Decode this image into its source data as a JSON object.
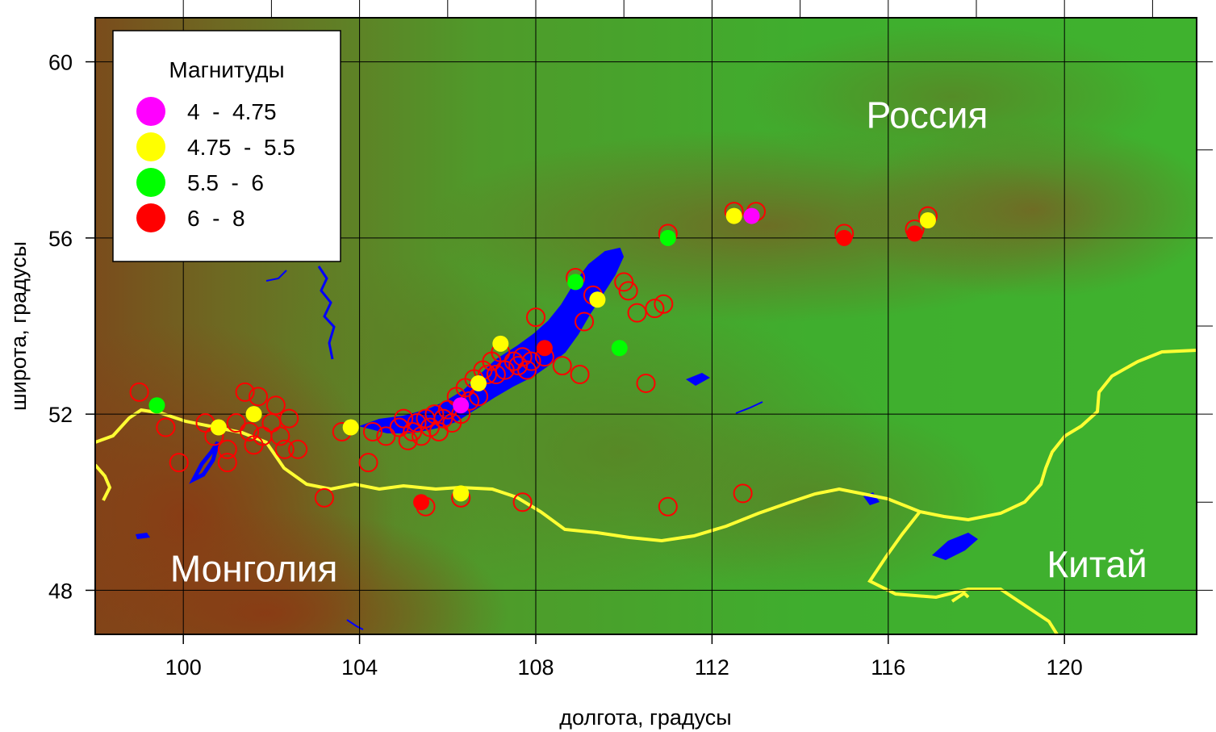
{
  "chart_data": {
    "type": "map-scatter",
    "xlabel": "долгота, градусы",
    "ylabel": "широта, градусы",
    "xlim": [
      98,
      123
    ],
    "ylim": [
      47,
      61
    ],
    "xticks": [
      100,
      104,
      108,
      112,
      116,
      120
    ],
    "yticks": [
      48,
      52,
      56,
      60
    ],
    "grid": true,
    "colors": {
      "terrain_low": "#3cb02c",
      "terrain_mid": "#5e8f26",
      "terrain_high": "#8c4a1a",
      "water": "#0000ff",
      "border": "#ffff33",
      "circle": "#ff0000",
      "grid": "#000000"
    },
    "country_labels": [
      {
        "text": "Россия",
        "lon": 115.5,
        "lat": 58.5
      },
      {
        "text": "Монголия",
        "lon": 99.7,
        "lat": 48.2
      },
      {
        "text": "Китай",
        "lon": 119.6,
        "lat": 48.3
      }
    ],
    "legend": {
      "title": "Магнитуды",
      "placement": "top-left",
      "items": [
        {
          "label": "4  -  4.75",
          "color": "#ff00ff"
        },
        {
          "label": "4.75  -  5.5",
          "color": "#ffff00"
        },
        {
          "label": "5.5  -  6",
          "color": "#00ff00"
        },
        {
          "label": "6  -  8",
          "color": "#ff0000"
        }
      ]
    },
    "series": [
      {
        "name": "4  -  4.75",
        "color": "#ff00ff",
        "points": [
          [
            106.3,
            52.2
          ],
          [
            112.9,
            56.5
          ]
        ]
      },
      {
        "name": "4.75  -  5.5",
        "color": "#ffff00",
        "points": [
          [
            100.8,
            51.7
          ],
          [
            101.6,
            52.0
          ],
          [
            103.8,
            51.7
          ],
          [
            106.3,
            50.2
          ],
          [
            107.2,
            53.6
          ],
          [
            106.7,
            52.7
          ],
          [
            109.4,
            54.6
          ],
          [
            112.5,
            56.5
          ],
          [
            116.9,
            56.4
          ]
        ]
      },
      {
        "name": "5.5  -  6",
        "color": "#00ff00",
        "points": [
          [
            99.4,
            52.2
          ],
          [
            108.9,
            55.0
          ],
          [
            109.9,
            53.5
          ],
          [
            111.0,
            56.0
          ]
        ]
      },
      {
        "name": "6  -  8",
        "color": "#ff0000",
        "points": [
          [
            105.4,
            50.0
          ],
          [
            108.2,
            53.5
          ],
          [
            115.0,
            56.0
          ],
          [
            116.6,
            56.1
          ]
        ]
      }
    ],
    "unfilled_events": [
      [
        99.0,
        52.5
      ],
      [
        99.6,
        51.7
      ],
      [
        99.9,
        50.9
      ],
      [
        100.5,
        51.8
      ],
      [
        100.7,
        51.5
      ],
      [
        101.0,
        51.2
      ],
      [
        101.0,
        50.9
      ],
      [
        101.2,
        51.8
      ],
      [
        101.4,
        52.5
      ],
      [
        101.5,
        51.6
      ],
      [
        101.6,
        51.3
      ],
      [
        101.7,
        52.4
      ],
      [
        101.8,
        51.5
      ],
      [
        102.0,
        51.8
      ],
      [
        102.1,
        52.2
      ],
      [
        102.2,
        51.5
      ],
      [
        102.3,
        51.2
      ],
      [
        102.4,
        51.9
      ],
      [
        102.6,
        51.2
      ],
      [
        103.2,
        50.1
      ],
      [
        103.6,
        51.6
      ],
      [
        104.2,
        50.9
      ],
      [
        104.3,
        51.6
      ],
      [
        104.6,
        51.5
      ],
      [
        104.9,
        51.7
      ],
      [
        105.0,
        51.9
      ],
      [
        105.1,
        51.4
      ],
      [
        105.2,
        51.6
      ],
      [
        105.3,
        51.8
      ],
      [
        105.4,
        51.5
      ],
      [
        105.5,
        51.9
      ],
      [
        105.6,
        51.7
      ],
      [
        105.7,
        52.0
      ],
      [
        105.8,
        51.6
      ],
      [
        105.9,
        51.9
      ],
      [
        106.0,
        52.1
      ],
      [
        106.1,
        51.8
      ],
      [
        106.2,
        52.4
      ],
      [
        106.3,
        52.0
      ],
      [
        106.4,
        52.6
      ],
      [
        106.5,
        52.3
      ],
      [
        106.6,
        52.8
      ],
      [
        106.7,
        52.4
      ],
      [
        106.8,
        53.0
      ],
      [
        106.9,
        52.9
      ],
      [
        107.0,
        53.2
      ],
      [
        107.1,
        52.9
      ],
      [
        107.2,
        53.4
      ],
      [
        107.3,
        53.0
      ],
      [
        107.5,
        53.2
      ],
      [
        107.6,
        53.1
      ],
      [
        107.7,
        53.3
      ],
      [
        107.8,
        53.0
      ],
      [
        107.9,
        53.2
      ],
      [
        108.0,
        54.2
      ],
      [
        108.2,
        53.3
      ],
      [
        108.6,
        53.1
      ],
      [
        108.9,
        55.1
      ],
      [
        109.0,
        52.9
      ],
      [
        109.1,
        54.1
      ],
      [
        109.3,
        54.7
      ],
      [
        110.0,
        55.0
      ],
      [
        110.1,
        54.8
      ],
      [
        110.3,
        54.3
      ],
      [
        110.5,
        52.7
      ],
      [
        110.7,
        54.4
      ],
      [
        110.9,
        54.5
      ],
      [
        111.0,
        56.1
      ],
      [
        111.0,
        49.9
      ],
      [
        112.5,
        56.6
      ],
      [
        112.7,
        50.2
      ],
      [
        113.0,
        56.6
      ],
      [
        107.7,
        50.0
      ],
      [
        106.3,
        50.1
      ],
      [
        105.5,
        49.9
      ],
      [
        115.0,
        56.1
      ],
      [
        116.6,
        56.2
      ],
      [
        116.9,
        56.5
      ]
    ]
  }
}
